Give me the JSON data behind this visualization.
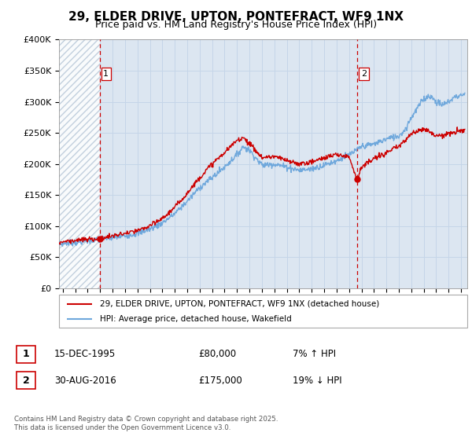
{
  "title": "29, ELDER DRIVE, UPTON, PONTEFRACT, WF9 1NX",
  "subtitle": "Price paid vs. HM Land Registry's House Price Index (HPI)",
  "ylabel_ticks": [
    "£0",
    "£50K",
    "£100K",
    "£150K",
    "£200K",
    "£250K",
    "£300K",
    "£350K",
    "£400K"
  ],
  "ylim": [
    0,
    400000
  ],
  "xlim_start": 1992.7,
  "xlim_end": 2025.5,
  "sale1_date": 1995.958,
  "sale1_price": 80000,
  "sale1_label": "1",
  "sale2_date": 2016.664,
  "sale2_price": 175000,
  "sale2_label": "2",
  "legend_line1": "29, ELDER DRIVE, UPTON, PONTEFRACT, WF9 1NX (detached house)",
  "legend_line2": "HPI: Average price, detached house, Wakefield",
  "table_row1_num": "1",
  "table_row1_date": "15-DEC-1995",
  "table_row1_price": "£80,000",
  "table_row1_hpi": "7% ↑ HPI",
  "table_row2_num": "2",
  "table_row2_date": "30-AUG-2016",
  "table_row2_price": "£175,000",
  "table_row2_hpi": "19% ↓ HPI",
  "footnote": "Contains HM Land Registry data © Crown copyright and database right 2025.\nThis data is licensed under the Open Government Licence v3.0.",
  "hpi_color": "#6fa8dc",
  "sale_color": "#cc0000",
  "chart_bg_color": "#dce6f1",
  "hatch_color": "#b8c8d8",
  "grid_color": "#c5d5e8",
  "vline_color": "#cc0000",
  "title_fontsize": 11,
  "subtitle_fontsize": 9
}
